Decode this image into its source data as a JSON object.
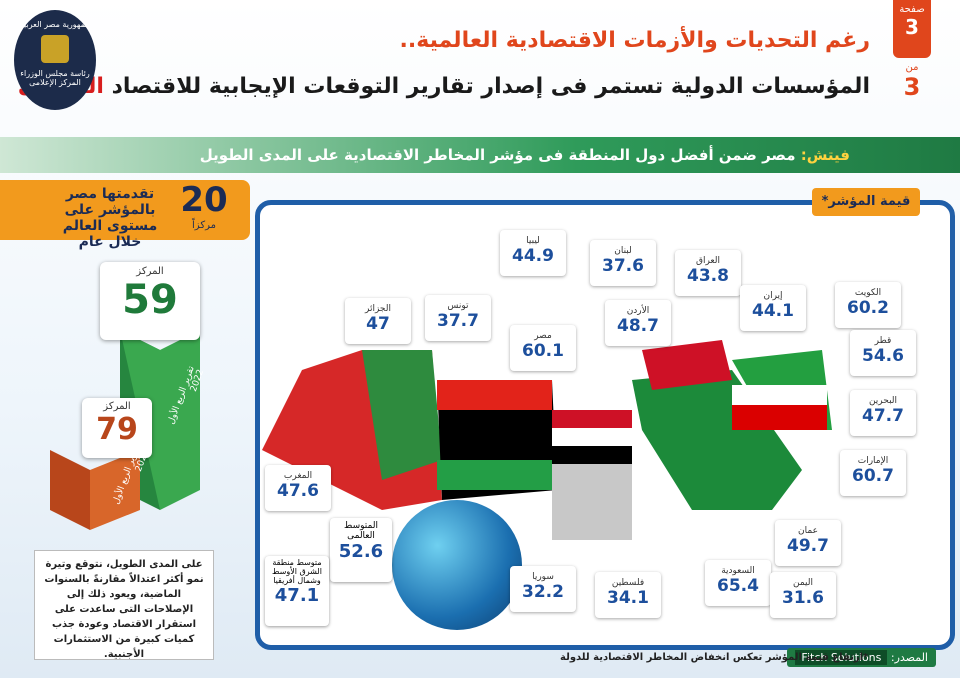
{
  "header": {
    "page_label": "صفحة",
    "page_current": "3",
    "page_of": "من",
    "page_total": "3",
    "title_line1": "رغم التحديات والأزمات الاقتصادية العالمية..",
    "title_line2": "المؤسسات الدولية تستمر فى إصدار تقارير التوقعات الإيجابية للاقتصاد",
    "title_highlight": "المصرى",
    "logo": [
      "جمهورية مصر العربية",
      "رئاسة مجلس الوزراء",
      "المركز الإعلامى"
    ]
  },
  "banner": {
    "source": "فيتش:",
    "text": "مصر ضمن أفضل دول المنطقة فى مؤشر المخاطر الاقتصادية على المدى الطويل"
  },
  "ranking": {
    "advance": 20,
    "advance_unit": "مركزاً",
    "advance_text": "تقدمتها مصر بالمؤشر على مستوى العالم خلال عام",
    "rank_label": "المركز",
    "rank_2022": 59,
    "report_2022": "تقرير الربع الأول 2022",
    "rank_2021": 79,
    "report_2021": "تقرير الربع الأول 2021"
  },
  "note": "على المدى الطويل، نتوقع وتيرة نمو أكثر اعتدالاً مقارنةً بالسنوات الماضية، ويعود ذلك إلى الإصلاحات التى ساعدت على استقرار الاقتصاد وعودة جذب كميات كبيرة من الاستثمارات الأجنبية.",
  "map": {
    "label": "قيمة المؤشر*",
    "countries": [
      {
        "name": "ليبيا",
        "value": 44.9
      },
      {
        "name": "لبنان",
        "value": 37.6
      },
      {
        "name": "العراق",
        "value": 43.8
      },
      {
        "name": "إيران",
        "value": 44.1
      },
      {
        "name": "الكويت",
        "value": 60.2
      },
      {
        "name": "الجزائر",
        "value": 47
      },
      {
        "name": "تونس",
        "value": 37.7
      },
      {
        "name": "الأردن",
        "value": 48.7
      },
      {
        "name": "مصر",
        "value": 60.1
      },
      {
        "name": "قطر",
        "value": 54.6
      },
      {
        "name": "البحرين",
        "value": 47.7
      },
      {
        "name": "الإمارات",
        "value": 60.7
      },
      {
        "name": "المغرب",
        "value": 47.6
      },
      {
        "name": "عمان",
        "value": 49.7
      },
      {
        "name": "السعودية",
        "value": 65.4
      },
      {
        "name": "اليمن",
        "value": 31.6
      },
      {
        "name": "فلسطين",
        "value": 34.1
      },
      {
        "name": "سوريا",
        "value": 32.2
      }
    ],
    "world_avg": {
      "name": "المتوسط العالمى",
      "value": 52.6
    },
    "mena_avg": {
      "name": "متوسط منطقة الشرق الأوسط وشمال أفريقيا",
      "value": 47.1
    }
  },
  "footer": {
    "source_label": "المصدر:",
    "source": "Fitch Solutions",
    "footnote": "*ارتفاع قيمة المؤشر تعكس انخفاض المخاطر الاقتصادية للدولة"
  }
}
